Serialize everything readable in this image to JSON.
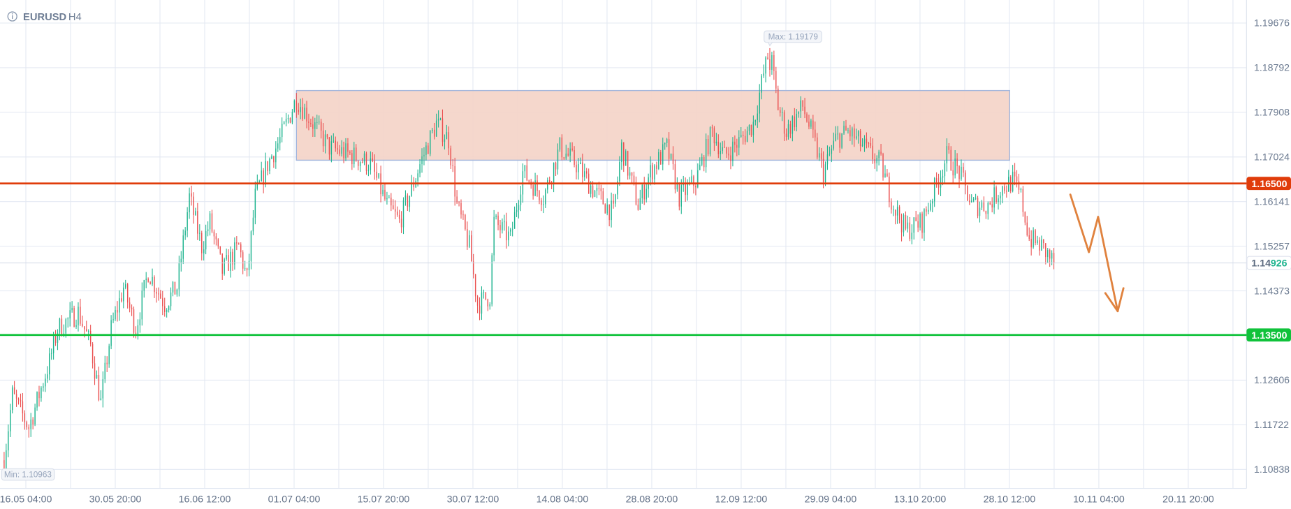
{
  "header": {
    "symbol": "EURUSD",
    "timeframe": "H4",
    "info_icon": "info-circle-icon"
  },
  "colors": {
    "up": "#1db38e",
    "down": "#ea4f4f",
    "resistance": "#e03c0a",
    "support": "#10c23b",
    "zone_fill": "#f4d3c6",
    "zone_border": "#9fb4dc",
    "arrow": "#e0823e",
    "current_price_up": "#1db38e"
  },
  "chart_data": {
    "type": "candlestick",
    "title": "EURUSD H4",
    "xlabel": "",
    "ylabel": "",
    "ylim": [
      1.1,
      1.2017
    ],
    "xlim_bars": [
      0,
      1208
    ],
    "y_ticks": [
      "1.19676",
      "1.18792",
      "1.17908",
      "1.17024",
      "1.16141",
      "1.15257",
      "1.14373",
      "1.12606",
      "1.11722",
      "1.10838"
    ],
    "x_ticks": [
      {
        "bar": 32,
        "label": "16.05 04:00"
      },
      {
        "bar": 119,
        "label": "30.05 20:00"
      },
      {
        "bar": 206,
        "label": "16.06 12:00"
      },
      {
        "bar": 293,
        "label": "01.07 04:00"
      },
      {
        "bar": 380,
        "label": "15.07 20:00"
      },
      {
        "bar": 467,
        "label": "30.07 12:00"
      },
      {
        "bar": 554,
        "label": "14.08 04:00"
      },
      {
        "bar": 641,
        "label": "28.08 20:00"
      },
      {
        "bar": 728,
        "label": "12.09 12:00"
      },
      {
        "bar": 815,
        "label": "29.09 04:00"
      },
      {
        "bar": 902,
        "label": "13.10 20:00"
      },
      {
        "bar": 989,
        "label": "28.10 12:00"
      },
      {
        "bar": 1076,
        "label": "10.11 04:00"
      },
      {
        "bar": 1163,
        "label": "20.11 20:00"
      }
    ],
    "price_path": [
      [
        0,
        1.1102
      ],
      [
        8,
        1.1232
      ],
      [
        24,
        1.1167
      ],
      [
        44,
        1.1297
      ],
      [
        52,
        1.1362
      ],
      [
        72,
        1.1395
      ],
      [
        84,
        1.1329
      ],
      [
        94,
        1.1216
      ],
      [
        104,
        1.1362
      ],
      [
        116,
        1.1444
      ],
      [
        128,
        1.1362
      ],
      [
        140,
        1.1476
      ],
      [
        156,
        1.1411
      ],
      [
        168,
        1.1444
      ],
      [
        180,
        1.1623
      ],
      [
        192,
        1.1525
      ],
      [
        200,
        1.1574
      ],
      [
        212,
        1.1476
      ],
      [
        228,
        1.1525
      ],
      [
        236,
        1.146
      ],
      [
        244,
        1.1623
      ],
      [
        256,
        1.1688
      ],
      [
        268,
        1.1737
      ],
      [
        284,
        1.1818
      ],
      [
        300,
        1.1769
      ],
      [
        316,
        1.1721
      ],
      [
        340,
        1.1704
      ],
      [
        356,
        1.1688
      ],
      [
        372,
        1.1607
      ],
      [
        384,
        1.1574
      ],
      [
        396,
        1.1639
      ],
      [
        404,
        1.1688
      ],
      [
        420,
        1.1769
      ],
      [
        432,
        1.1737
      ],
      [
        440,
        1.1607
      ],
      [
        452,
        1.1525
      ],
      [
        460,
        1.1411
      ],
      [
        472,
        1.1428
      ],
      [
        476,
        1.1574
      ],
      [
        492,
        1.1541
      ],
      [
        504,
        1.1672
      ],
      [
        524,
        1.1623
      ],
      [
        540,
        1.1721
      ],
      [
        556,
        1.1688
      ],
      [
        572,
        1.1639
      ],
      [
        592,
        1.159
      ],
      [
        600,
        1.1721
      ],
      [
        616,
        1.1607
      ],
      [
        628,
        1.1672
      ],
      [
        644,
        1.1721
      ],
      [
        656,
        1.1623
      ],
      [
        672,
        1.1655
      ],
      [
        688,
        1.1753
      ],
      [
        700,
        1.1704
      ],
      [
        716,
        1.1737
      ],
      [
        728,
        1.1769
      ],
      [
        738,
        1.1867
      ],
      [
        744,
        1.1916
      ],
      [
        752,
        1.1802
      ],
      [
        760,
        1.1753
      ],
      [
        776,
        1.1802
      ],
      [
        784,
        1.1753
      ],
      [
        796,
        1.1672
      ],
      [
        808,
        1.1737
      ],
      [
        820,
        1.1753
      ],
      [
        836,
        1.1721
      ],
      [
        852,
        1.1688
      ],
      [
        864,
        1.1607
      ],
      [
        876,
        1.1557
      ],
      [
        892,
        1.1574
      ],
      [
        904,
        1.1639
      ],
      [
        916,
        1.1704
      ],
      [
        928,
        1.1672
      ],
      [
        940,
        1.1607
      ],
      [
        956,
        1.1607
      ],
      [
        968,
        1.1639
      ],
      [
        980,
        1.1655
      ],
      [
        988,
        1.1623
      ],
      [
        996,
        1.1541
      ],
      [
        1008,
        1.1525
      ],
      [
        1020,
        1.1493
      ]
    ],
    "max": {
      "bar": 744,
      "value": 1.19179,
      "label": "Max: 1.19179"
    },
    "min": {
      "bar": 0,
      "value": 1.10963,
      "label": "Min: 1.10963"
    },
    "levels": [
      {
        "name": "resistance",
        "value": 1.165,
        "label": "1.16500"
      },
      {
        "name": "support",
        "value": 1.135,
        "label": "1.13500"
      }
    ],
    "current_price": {
      "value": 1.14926,
      "label_prefix": "1.14",
      "label_suffix": "926"
    },
    "zone": {
      "bar_start": 284,
      "bar_end": 977,
      "price_top": 1.1834,
      "price_bottom": 1.1696
    },
    "projection_arrow": [
      [
        1036,
        1.1628
      ],
      [
        1054,
        1.1514
      ],
      [
        1063,
        1.1584
      ],
      [
        1082,
        1.1397
      ]
    ]
  }
}
